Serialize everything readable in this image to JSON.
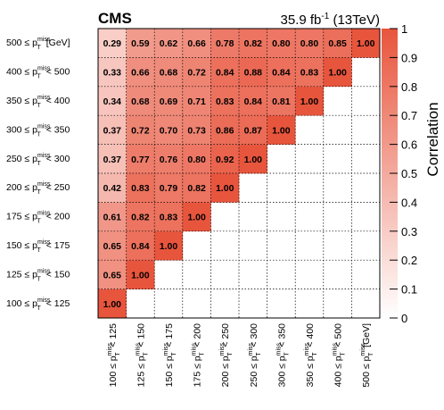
{
  "header": {
    "experiment": "CMS",
    "lumi_value": "35.9 fb",
    "lumi_exp": "-1",
    "energy": " (13TeV)"
  },
  "colorbar": {
    "title": "Correlation",
    "min": 0,
    "max": 1,
    "ticks": [
      "0",
      "0.1",
      "0.2",
      "0.3",
      "0.4",
      "0.5",
      "0.6",
      "0.7",
      "0.8",
      "0.9",
      "1"
    ],
    "color_low": "#ffffff",
    "color_high": "#e8553d"
  },
  "chart_data": {
    "type": "heatmap",
    "title": "",
    "xlabel": "",
    "ylabel": "",
    "bins": [
      {
        "lo": "100",
        "hi": "125",
        "unit": ""
      },
      {
        "lo": "125",
        "hi": "150",
        "unit": ""
      },
      {
        "lo": "150",
        "hi": "175",
        "unit": ""
      },
      {
        "lo": "175",
        "hi": "200",
        "unit": ""
      },
      {
        "lo": "200",
        "hi": "250",
        "unit": ""
      },
      {
        "lo": "250",
        "hi": "300",
        "unit": ""
      },
      {
        "lo": "300",
        "hi": "350",
        "unit": ""
      },
      {
        "lo": "350",
        "hi": "400",
        "unit": ""
      },
      {
        "lo": "400",
        "hi": "500",
        "unit": ""
      },
      {
        "lo": "500",
        "hi": "",
        "unit": "[GeV]"
      }
    ],
    "variable": {
      "base": "p",
      "sup": "miss",
      "sub": "T"
    },
    "matrix": [
      [
        1.0
      ],
      [
        0.65,
        1.0
      ],
      [
        0.65,
        0.84,
        1.0
      ],
      [
        0.61,
        0.82,
        0.83,
        1.0
      ],
      [
        0.42,
        0.83,
        0.79,
        0.82,
        1.0
      ],
      [
        0.37,
        0.77,
        0.76,
        0.8,
        0.92,
        1.0
      ],
      [
        0.37,
        0.72,
        0.7,
        0.73,
        0.86,
        0.87,
        1.0
      ],
      [
        0.34,
        0.68,
        0.69,
        0.71,
        0.83,
        0.84,
        0.81,
        1.0
      ],
      [
        0.33,
        0.66,
        0.68,
        0.72,
        0.84,
        0.88,
        0.84,
        0.83,
        1.0
      ],
      [
        0.29,
        0.59,
        0.62,
        0.66,
        0.78,
        0.82,
        0.8,
        0.8,
        0.85,
        1.0
      ]
    ],
    "zlim": [
      0,
      1
    ],
    "grid": true
  }
}
